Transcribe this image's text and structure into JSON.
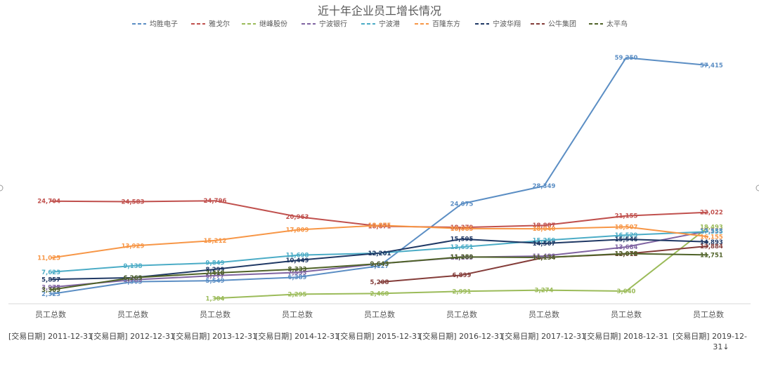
{
  "chart_data": {
    "type": "line",
    "title": "近十年企业员工增长情况",
    "categories": [
      "员工总数",
      "员工总数",
      "员工总数",
      "员工总数",
      "员工总数",
      "员工总数",
      "员工总数",
      "员工总数",
      "员工总数"
    ],
    "dates": [
      "[交易日期] 2011-12-31",
      "[交易日期] 2012-12-31",
      "[交易日期] 2013-12-31",
      "[交易日期] 2014-12-31",
      "[交易日期] 2015-12-31",
      "[交易日期] 2016-12-31",
      "[交易日期] 2017-12-31",
      "[交易日期] 2018-12-31",
      "[交易日期] 2019-12-31↓"
    ],
    "legend_position": "top",
    "grid": false,
    "series": [
      {
        "name": "均胜电子",
        "color": "#5b8ec4",
        "values": [
          2323,
          5305,
          5549,
          6389,
          9127,
          24075,
          28349,
          59250,
          57415
        ],
        "labels": [
          "2,323",
          "5,305",
          "5,549",
          "6,389",
          "9,127",
          "24,075",
          "28,349",
          "59,250",
          "57,415"
        ]
      },
      {
        "name": "雅戈尔",
        "color": "#c0504d",
        "values": [
          24704,
          24583,
          24796,
          20963,
          18671,
          18379,
          18887,
          21155,
          22022
        ],
        "labels": [
          "24,704",
          "24,583",
          "24,796",
          "20,963",
          "18,671",
          "18,379",
          "18,887",
          "21,155",
          "22,022"
        ]
      },
      {
        "name": "继峰股份",
        "color": "#9bbb59",
        "values": [
          null,
          null,
          1304,
          2295,
          2460,
          2991,
          3274,
          3040,
          18493
        ],
        "labels": [
          "",
          "",
          "1,304",
          "2,295",
          "2,460",
          "2,991",
          "3,274",
          "3,040",
          "18,493"
        ]
      },
      {
        "name": "宁波银行",
        "color": "#8064a2",
        "values": [
          3975,
          5763,
          6777,
          7533,
          9643,
          11185,
          11488,
          13684,
          17533
        ],
        "labels": [
          "3,975",
          "5,763",
          "6,777",
          "7,533",
          "9,643",
          "11,185",
          "11,488",
          "13,684",
          "17,533"
        ]
      },
      {
        "name": "宁波港",
        "color": "#4bacc6",
        "values": [
          7623,
          9138,
          9849,
          11698,
          12201,
          13651,
          15259,
          16529,
          17355
        ],
        "labels": [
          "7,623",
          "9,138",
          "9,849",
          "11,698",
          "12,201",
          "13,651",
          "15,259",
          "16,529",
          "17,355"
        ]
      },
      {
        "name": "百隆东方",
        "color": "#f79646",
        "values": [
          11025,
          13929,
          15212,
          17809,
          18875,
          18085,
          18040,
          18507,
          16155
        ],
        "labels": [
          "11,025",
          "13,929",
          "15,212",
          "17,809",
          "18,875",
          "18,085",
          "18,040",
          "18,507",
          "16,155"
        ]
      },
      {
        "name": "宁波华翔",
        "color": "#1f3864",
        "values": [
          5857,
          6263,
          8299,
          10449,
          12201,
          15595,
          14507,
          15546,
          14893
        ],
        "labels": [
          "5,857",
          "6,263",
          "8,299",
          "10,449",
          "12,201",
          "15,595",
          "14,507",
          "15,546",
          "14,893"
        ]
      },
      {
        "name": "公牛集团",
        "color": "#843c39",
        "values": [
          null,
          null,
          null,
          null,
          5208,
          6899,
          11134,
          12012,
          13884
        ],
        "labels": [
          "",
          "",
          "",
          "",
          "5,208",
          "6,899",
          "11,134",
          "12,012",
          "13,884"
        ]
      },
      {
        "name": "太平鸟",
        "color": "#4f6228",
        "values": [
          3369,
          6263,
          7410,
          8333,
          9643,
          11289,
          11134,
          12078,
          11751
        ],
        "labels": [
          "3,369",
          "6,263",
          "7,410",
          "8,333",
          "9,643",
          "11,289",
          "11,134",
          "12,078",
          "11,751"
        ]
      }
    ]
  }
}
